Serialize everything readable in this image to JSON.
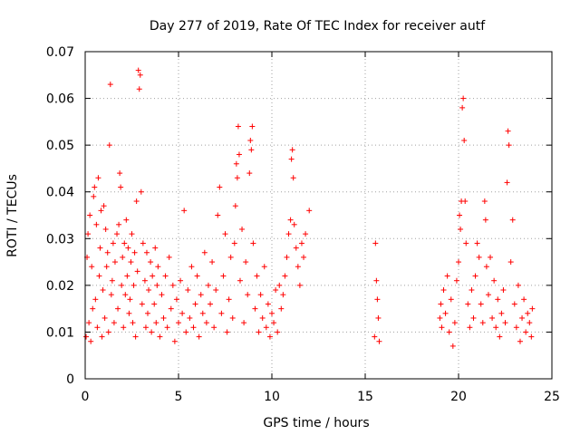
{
  "chart_data": {
    "type": "scatter",
    "title": "Day 277 of 2019, Rate Of TEC Index for receiver autf",
    "xlabel": "GPS time / hours",
    "ylabel": "ROTI / TECUs",
    "xlim": [
      0,
      25
    ],
    "ylim": [
      0,
      0.07
    ],
    "xticks": [
      0,
      5,
      10,
      15,
      20,
      25
    ],
    "xtick_labels": [
      "0",
      "5",
      "10",
      "15",
      "20",
      "25"
    ],
    "yticks": [
      0,
      0.01,
      0.02,
      0.03,
      0.04,
      0.05,
      0.06,
      0.07
    ],
    "ytick_labels": [
      "0",
      "0.01",
      "0.02",
      "0.03",
      "0.04",
      "0.05",
      "0.06",
      "0.07"
    ],
    "grid": true,
    "marker": "plus",
    "color": "#ff0000",
    "series": [
      {
        "name": "ROTI",
        "points": [
          [
            0.05,
            0.009
          ],
          [
            0.1,
            0.026
          ],
          [
            0.15,
            0.031
          ],
          [
            0.2,
            0.012
          ],
          [
            0.25,
            0.035
          ],
          [
            0.3,
            0.008
          ],
          [
            0.35,
            0.024
          ],
          [
            0.4,
            0.015
          ],
          [
            0.45,
            0.039
          ],
          [
            0.5,
            0.041
          ],
          [
            0.55,
            0.017
          ],
          [
            0.6,
            0.033
          ],
          [
            0.65,
            0.011
          ],
          [
            0.7,
            0.043
          ],
          [
            0.75,
            0.022
          ],
          [
            0.8,
            0.028
          ],
          [
            0.85,
            0.036
          ],
          [
            0.9,
            0.009
          ],
          [
            0.95,
            0.019
          ],
          [
            1.0,
            0.037
          ],
          [
            1.05,
            0.013
          ],
          [
            1.1,
            0.032
          ],
          [
            1.15,
            0.024
          ],
          [
            1.2,
            0.027
          ],
          [
            1.25,
            0.01
          ],
          [
            1.3,
            0.05
          ],
          [
            1.35,
            0.063
          ],
          [
            1.4,
            0.018
          ],
          [
            1.45,
            0.021
          ],
          [
            1.5,
            0.029
          ],
          [
            1.55,
            0.012
          ],
          [
            1.6,
            0.025
          ],
          [
            1.7,
            0.031
          ],
          [
            1.75,
            0.015
          ],
          [
            1.8,
            0.033
          ],
          [
            1.85,
            0.044
          ],
          [
            1.9,
            0.041
          ],
          [
            1.95,
            0.02
          ],
          [
            2.0,
            0.026
          ],
          [
            2.05,
            0.011
          ],
          [
            2.1,
            0.029
          ],
          [
            2.15,
            0.018
          ],
          [
            2.2,
            0.034
          ],
          [
            2.25,
            0.022
          ],
          [
            2.3,
            0.028
          ],
          [
            2.35,
            0.014
          ],
          [
            2.4,
            0.017
          ],
          [
            2.45,
            0.025
          ],
          [
            2.5,
            0.031
          ],
          [
            2.55,
            0.012
          ],
          [
            2.6,
            0.02
          ],
          [
            2.65,
            0.027
          ],
          [
            2.7,
            0.009
          ],
          [
            2.75,
            0.038
          ],
          [
            2.8,
            0.023
          ],
          [
            2.85,
            0.066
          ],
          [
            2.9,
            0.062
          ],
          [
            2.95,
            0.065
          ],
          [
            3.0,
            0.04
          ],
          [
            3.05,
            0.016
          ],
          [
            3.1,
            0.029
          ],
          [
            3.2,
            0.021
          ],
          [
            3.25,
            0.011
          ],
          [
            3.3,
            0.027
          ],
          [
            3.35,
            0.014
          ],
          [
            3.4,
            0.019
          ],
          [
            3.5,
            0.025
          ],
          [
            3.55,
            0.01
          ],
          [
            3.6,
            0.022
          ],
          [
            3.7,
            0.016
          ],
          [
            3.75,
            0.028
          ],
          [
            3.8,
            0.012
          ],
          [
            3.85,
            0.02
          ],
          [
            3.9,
            0.024
          ],
          [
            4.0,
            0.009
          ],
          [
            4.1,
            0.018
          ],
          [
            4.2,
            0.013
          ],
          [
            4.3,
            0.022
          ],
          [
            4.4,
            0.011
          ],
          [
            4.5,
            0.026
          ],
          [
            4.6,
            0.015
          ],
          [
            4.7,
            0.02
          ],
          [
            4.8,
            0.008
          ],
          [
            4.9,
            0.017
          ],
          [
            5.0,
            0.012
          ],
          [
            5.1,
            0.021
          ],
          [
            5.2,
            0.014
          ],
          [
            5.3,
            0.036
          ],
          [
            5.4,
            0.01
          ],
          [
            5.5,
            0.019
          ],
          [
            5.6,
            0.013
          ],
          [
            5.7,
            0.024
          ],
          [
            5.8,
            0.011
          ],
          [
            5.9,
            0.016
          ],
          [
            6.0,
            0.022
          ],
          [
            6.1,
            0.009
          ],
          [
            6.2,
            0.018
          ],
          [
            6.3,
            0.014
          ],
          [
            6.4,
            0.027
          ],
          [
            6.5,
            0.012
          ],
          [
            6.6,
            0.02
          ],
          [
            6.7,
            0.016
          ],
          [
            6.8,
            0.025
          ],
          [
            6.9,
            0.011
          ],
          [
            7.0,
            0.019
          ],
          [
            7.1,
            0.035
          ],
          [
            7.2,
            0.041
          ],
          [
            7.3,
            0.014
          ],
          [
            7.4,
            0.022
          ],
          [
            7.5,
            0.031
          ],
          [
            7.6,
            0.01
          ],
          [
            7.7,
            0.017
          ],
          [
            7.8,
            0.026
          ],
          [
            7.9,
            0.013
          ],
          [
            8.0,
            0.029
          ],
          [
            8.05,
            0.037
          ],
          [
            8.1,
            0.046
          ],
          [
            8.15,
            0.043
          ],
          [
            8.2,
            0.054
          ],
          [
            8.25,
            0.048
          ],
          [
            8.3,
            0.021
          ],
          [
            8.4,
            0.032
          ],
          [
            8.5,
            0.012
          ],
          [
            8.6,
            0.025
          ],
          [
            8.7,
            0.018
          ],
          [
            8.8,
            0.044
          ],
          [
            8.85,
            0.051
          ],
          [
            8.9,
            0.049
          ],
          [
            8.95,
            0.054
          ],
          [
            9.0,
            0.029
          ],
          [
            9.1,
            0.015
          ],
          [
            9.2,
            0.022
          ],
          [
            9.3,
            0.01
          ],
          [
            9.4,
            0.018
          ],
          [
            9.5,
            0.013
          ],
          [
            9.6,
            0.024
          ],
          [
            9.7,
            0.011
          ],
          [
            9.8,
            0.016
          ],
          [
            9.9,
            0.009
          ],
          [
            10.0,
            0.014
          ],
          [
            10.1,
            0.012
          ],
          [
            10.2,
            0.019
          ],
          [
            10.3,
            0.01
          ],
          [
            10.4,
            0.02
          ],
          [
            10.5,
            0.015
          ],
          [
            10.6,
            0.018
          ],
          [
            10.7,
            0.022
          ],
          [
            10.8,
            0.026
          ],
          [
            10.9,
            0.031
          ],
          [
            11.0,
            0.034
          ],
          [
            11.05,
            0.047
          ],
          [
            11.1,
            0.049
          ],
          [
            11.15,
            0.043
          ],
          [
            11.2,
            0.033
          ],
          [
            11.3,
            0.028
          ],
          [
            11.4,
            0.024
          ],
          [
            11.5,
            0.02
          ],
          [
            11.6,
            0.029
          ],
          [
            11.7,
            0.026
          ],
          [
            11.8,
            0.031
          ],
          [
            12.0,
            0.036
          ],
          [
            15.5,
            0.009
          ],
          [
            15.55,
            0.029
          ],
          [
            15.6,
            0.021
          ],
          [
            15.65,
            0.017
          ],
          [
            15.7,
            0.013
          ],
          [
            15.75,
            0.008
          ],
          [
            19.0,
            0.013
          ],
          [
            19.05,
            0.016
          ],
          [
            19.1,
            0.011
          ],
          [
            19.2,
            0.019
          ],
          [
            19.3,
            0.014
          ],
          [
            19.4,
            0.022
          ],
          [
            19.5,
            0.01
          ],
          [
            19.6,
            0.017
          ],
          [
            19.7,
            0.007
          ],
          [
            19.8,
            0.012
          ],
          [
            19.9,
            0.021
          ],
          [
            20.0,
            0.025
          ],
          [
            20.05,
            0.035
          ],
          [
            20.1,
            0.032
          ],
          [
            20.15,
            0.038
          ],
          [
            20.2,
            0.058
          ],
          [
            20.25,
            0.06
          ],
          [
            20.3,
            0.051
          ],
          [
            20.35,
            0.038
          ],
          [
            20.4,
            0.029
          ],
          [
            20.5,
            0.016
          ],
          [
            20.6,
            0.011
          ],
          [
            20.7,
            0.019
          ],
          [
            20.8,
            0.013
          ],
          [
            20.9,
            0.022
          ],
          [
            21.0,
            0.029
          ],
          [
            21.1,
            0.026
          ],
          [
            21.2,
            0.016
          ],
          [
            21.3,
            0.012
          ],
          [
            21.4,
            0.038
          ],
          [
            21.45,
            0.034
          ],
          [
            21.5,
            0.024
          ],
          [
            21.6,
            0.018
          ],
          [
            21.7,
            0.026
          ],
          [
            21.8,
            0.013
          ],
          [
            21.9,
            0.021
          ],
          [
            22.0,
            0.011
          ],
          [
            22.1,
            0.017
          ],
          [
            22.2,
            0.009
          ],
          [
            22.3,
            0.014
          ],
          [
            22.4,
            0.019
          ],
          [
            22.5,
            0.012
          ],
          [
            22.6,
            0.042
          ],
          [
            22.65,
            0.053
          ],
          [
            22.7,
            0.05
          ],
          [
            22.8,
            0.025
          ],
          [
            22.9,
            0.034
          ],
          [
            23.0,
            0.016
          ],
          [
            23.1,
            0.011
          ],
          [
            23.2,
            0.02
          ],
          [
            23.3,
            0.008
          ],
          [
            23.4,
            0.013
          ],
          [
            23.5,
            0.017
          ],
          [
            23.6,
            0.01
          ],
          [
            23.7,
            0.014
          ],
          [
            23.8,
            0.012
          ],
          [
            23.9,
            0.009
          ],
          [
            23.95,
            0.015
          ]
        ]
      }
    ]
  }
}
